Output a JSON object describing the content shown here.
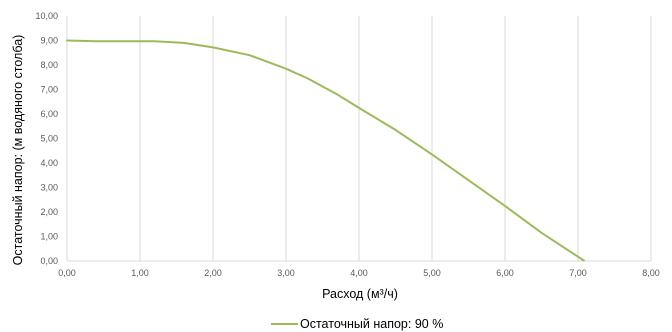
{
  "chart_data": {
    "type": "line",
    "title": "",
    "xlabel": "Расход (м³/ч)",
    "ylabel": "Остаточный напор: (м водяного столба)",
    "xlim": [
      0,
      8
    ],
    "ylim": [
      0,
      10
    ],
    "x_ticks": [
      "0,00",
      "1,00",
      "2,00",
      "3,00",
      "4,00",
      "5,00",
      "6,00",
      "7,00",
      "8,00"
    ],
    "y_ticks": [
      "0,00",
      "1,00",
      "2,00",
      "3,00",
      "4,00",
      "5,00",
      "6,00",
      "7,00",
      "8,00",
      "9,00",
      "10,00"
    ],
    "grid": "vertical",
    "legend_position": "bottom",
    "colors": {
      "series": "#9bbb59",
      "grid": "#d9d9d9"
    },
    "series": [
      {
        "name": "Остаточный напор: 90 %",
        "x": [
          0,
          0.4,
          0.8,
          1.2,
          1.6,
          2.0,
          2.5,
          3.0,
          3.3,
          3.7,
          4.0,
          4.5,
          5.0,
          5.5,
          6.0,
          6.5,
          7.08
        ],
        "y": [
          9.0,
          8.97,
          8.97,
          8.97,
          8.9,
          8.72,
          8.4,
          7.85,
          7.45,
          6.8,
          6.25,
          5.35,
          4.35,
          3.3,
          2.25,
          1.15,
          0.02
        ]
      }
    ]
  }
}
